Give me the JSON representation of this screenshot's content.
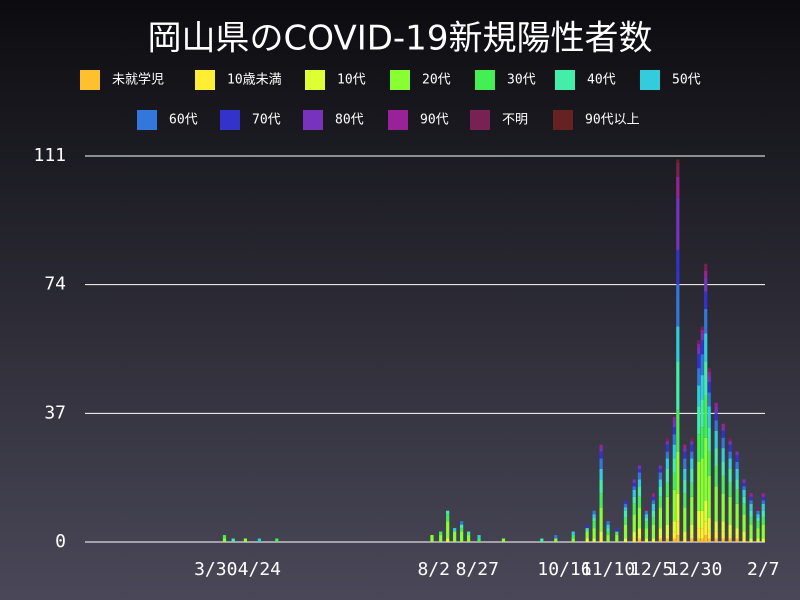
{
  "chart_data": {
    "type": "stacked_bar",
    "title": "岡山県のCOVID-19新規陽性者数",
    "x": [
      80,
      85,
      92,
      100,
      110,
      199,
      204,
      208,
      212,
      216,
      220,
      226,
      240,
      262,
      270,
      280,
      288,
      292,
      296,
      300,
      305,
      310,
      315,
      318,
      322,
      326,
      330,
      334,
      338,
      340,
      344,
      348,
      352,
      354,
      356,
      358,
      362,
      366,
      370,
      374,
      378,
      382,
      386,
      389
    ],
    "xlim": [
      0,
      390
    ],
    "xticks": [
      {
        "value": 75,
        "label": "3/30"
      },
      {
        "value": 100,
        "label": "4/24"
      },
      {
        "value": 200,
        "label": "8/2"
      },
      {
        "value": 225,
        "label": "8/27"
      },
      {
        "value": 275,
        "label": "10/16"
      },
      {
        "value": 300,
        "label": "11/10"
      },
      {
        "value": 325,
        "label": "12/5"
      },
      {
        "value": 350,
        "label": "12/30"
      },
      {
        "value": 389,
        "label": "2/7"
      }
    ],
    "ylim": [
      0,
      111
    ],
    "yticks": [
      0,
      37,
      74,
      111
    ],
    "grid": true,
    "series": [
      {
        "name": "未就学児",
        "color": "#ffc030",
        "values": [
          0,
          0,
          0,
          0,
          0,
          0,
          0,
          0,
          0,
          0,
          0,
          0,
          0,
          0,
          0,
          0,
          0,
          0,
          0,
          0,
          0,
          0,
          0,
          1,
          0,
          0,
          1,
          1,
          1,
          2,
          0,
          1,
          1,
          1,
          2,
          1,
          1,
          1,
          1,
          1,
          0,
          0,
          0,
          0
        ]
      },
      {
        "name": "10歳未満",
        "color": "#ffee33",
        "values": [
          0,
          0,
          0,
          0,
          0,
          0,
          0,
          0,
          0,
          0,
          0,
          0,
          0,
          0,
          0,
          0,
          0,
          0,
          1,
          0,
          0,
          0,
          1,
          1,
          0,
          0,
          1,
          1,
          2,
          4,
          1,
          1,
          3,
          3,
          4,
          2,
          2,
          2,
          1,
          1,
          1,
          0,
          0,
          0
        ]
      },
      {
        "name": "10代",
        "color": "#ddff33",
        "values": [
          0,
          0,
          0,
          0,
          0,
          0,
          0,
          1,
          0,
          0,
          0,
          0,
          0,
          0,
          0,
          0,
          1,
          1,
          2,
          0,
          0,
          1,
          2,
          2,
          1,
          1,
          2,
          3,
          3,
          8,
          2,
          3,
          5,
          5,
          6,
          4,
          3,
          3,
          3,
          2,
          2,
          1,
          1,
          1
        ]
      },
      {
        "name": "20代",
        "color": "#88ff33",
        "values": [
          1,
          0,
          1,
          0,
          0,
          2,
          2,
          5,
          3,
          3,
          2,
          0,
          1,
          0,
          1,
          1,
          2,
          3,
          7,
          2,
          2,
          4,
          5,
          6,
          3,
          4,
          6,
          8,
          9,
          12,
          7,
          8,
          14,
          15,
          18,
          12,
          10,
          8,
          8,
          7,
          5,
          4,
          3,
          4
        ]
      },
      {
        "name": "30代",
        "color": "#44ee55",
        "values": [
          1,
          0,
          0,
          0,
          1,
          0,
          1,
          2,
          0,
          1,
          0,
          1,
          0,
          0,
          0,
          1,
          0,
          2,
          4,
          1,
          1,
          2,
          3,
          3,
          2,
          2,
          3,
          4,
          5,
          12,
          4,
          4,
          8,
          9,
          12,
          7,
          6,
          5,
          4,
          4,
          3,
          2,
          2,
          2
        ]
      },
      {
        "name": "40代",
        "color": "#44eeaa",
        "values": [
          0,
          1,
          0,
          0,
          0,
          0,
          0,
          1,
          0,
          1,
          1,
          0,
          0,
          1,
          0,
          0,
          1,
          1,
          4,
          1,
          0,
          2,
          2,
          3,
          1,
          2,
          3,
          4,
          4,
          14,
          4,
          4,
          8,
          8,
          10,
          7,
          5,
          4,
          4,
          3,
          2,
          2,
          1,
          2
        ]
      },
      {
        "name": "50代",
        "color": "#33ccdd",
        "values": [
          0,
          0,
          0,
          1,
          0,
          0,
          0,
          0,
          1,
          0,
          0,
          1,
          0,
          0,
          0,
          1,
          0,
          1,
          3,
          1,
          0,
          1,
          2,
          2,
          1,
          2,
          2,
          3,
          4,
          10,
          3,
          3,
          6,
          7,
          8,
          6,
          5,
          4,
          3,
          3,
          2,
          2,
          1,
          2
        ]
      },
      {
        "name": "60代",
        "color": "#3377dd",
        "values": [
          0,
          0,
          0,
          0,
          0,
          0,
          0,
          0,
          0,
          1,
          0,
          0,
          0,
          0,
          1,
          0,
          0,
          1,
          3,
          1,
          0,
          1,
          1,
          2,
          1,
          1,
          2,
          2,
          3,
          12,
          3,
          2,
          5,
          6,
          7,
          4,
          3,
          3,
          2,
          2,
          1,
          1,
          1,
          1
        ]
      },
      {
        "name": "70代",
        "color": "#3333cc",
        "values": [
          0,
          0,
          0,
          0,
          0,
          0,
          0,
          0,
          0,
          0,
          0,
          0,
          0,
          0,
          0,
          0,
          1,
          0,
          2,
          0,
          1,
          1,
          1,
          1,
          0,
          1,
          1,
          2,
          2,
          10,
          2,
          2,
          4,
          4,
          5,
          3,
          2,
          2,
          2,
          2,
          1,
          1,
          0,
          1
        ]
      },
      {
        "name": "80代",
        "color": "#7733bb",
        "values": [
          0,
          0,
          0,
          0,
          0,
          0,
          0,
          0,
          0,
          0,
          0,
          0,
          0,
          0,
          0,
          0,
          0,
          0,
          1,
          0,
          0,
          0,
          1,
          1,
          0,
          0,
          1,
          1,
          2,
          15,
          1,
          1,
          2,
          2,
          4,
          2,
          2,
          1,
          1,
          1,
          1,
          0,
          0,
          0
        ]
      },
      {
        "name": "90代",
        "color": "#992299",
        "values": [
          0,
          0,
          0,
          0,
          0,
          0,
          0,
          0,
          0,
          0,
          0,
          0,
          0,
          0,
          0,
          0,
          0,
          0,
          1,
          0,
          0,
          0,
          0,
          0,
          0,
          1,
          0,
          0,
          1,
          6,
          1,
          0,
          1,
          1,
          2,
          1,
          1,
          1,
          0,
          0,
          0,
          1,
          0,
          1
        ]
      },
      {
        "name": "不明",
        "color": "#772255",
        "values": [
          0,
          0,
          0,
          0,
          0,
          0,
          0,
          0,
          0,
          0,
          0,
          0,
          0,
          0,
          0,
          0,
          0,
          0,
          0,
          0,
          0,
          0,
          0,
          0,
          1,
          0,
          0,
          1,
          0,
          4,
          0,
          1,
          1,
          1,
          2,
          1,
          0,
          0,
          1,
          0,
          0,
          0,
          1,
          0
        ]
      },
      {
        "name": "90代以上",
        "color": "#662222",
        "values": [
          0,
          0,
          0,
          0,
          0,
          0,
          0,
          0,
          0,
          0,
          0,
          0,
          0,
          0,
          0,
          0,
          0,
          0,
          0,
          0,
          0,
          0,
          0,
          0,
          0,
          0,
          0,
          0,
          0,
          1,
          0,
          0,
          0,
          0,
          0,
          0,
          0,
          0,
          0,
          0,
          0,
          0,
          0,
          0
        ]
      }
    ]
  }
}
